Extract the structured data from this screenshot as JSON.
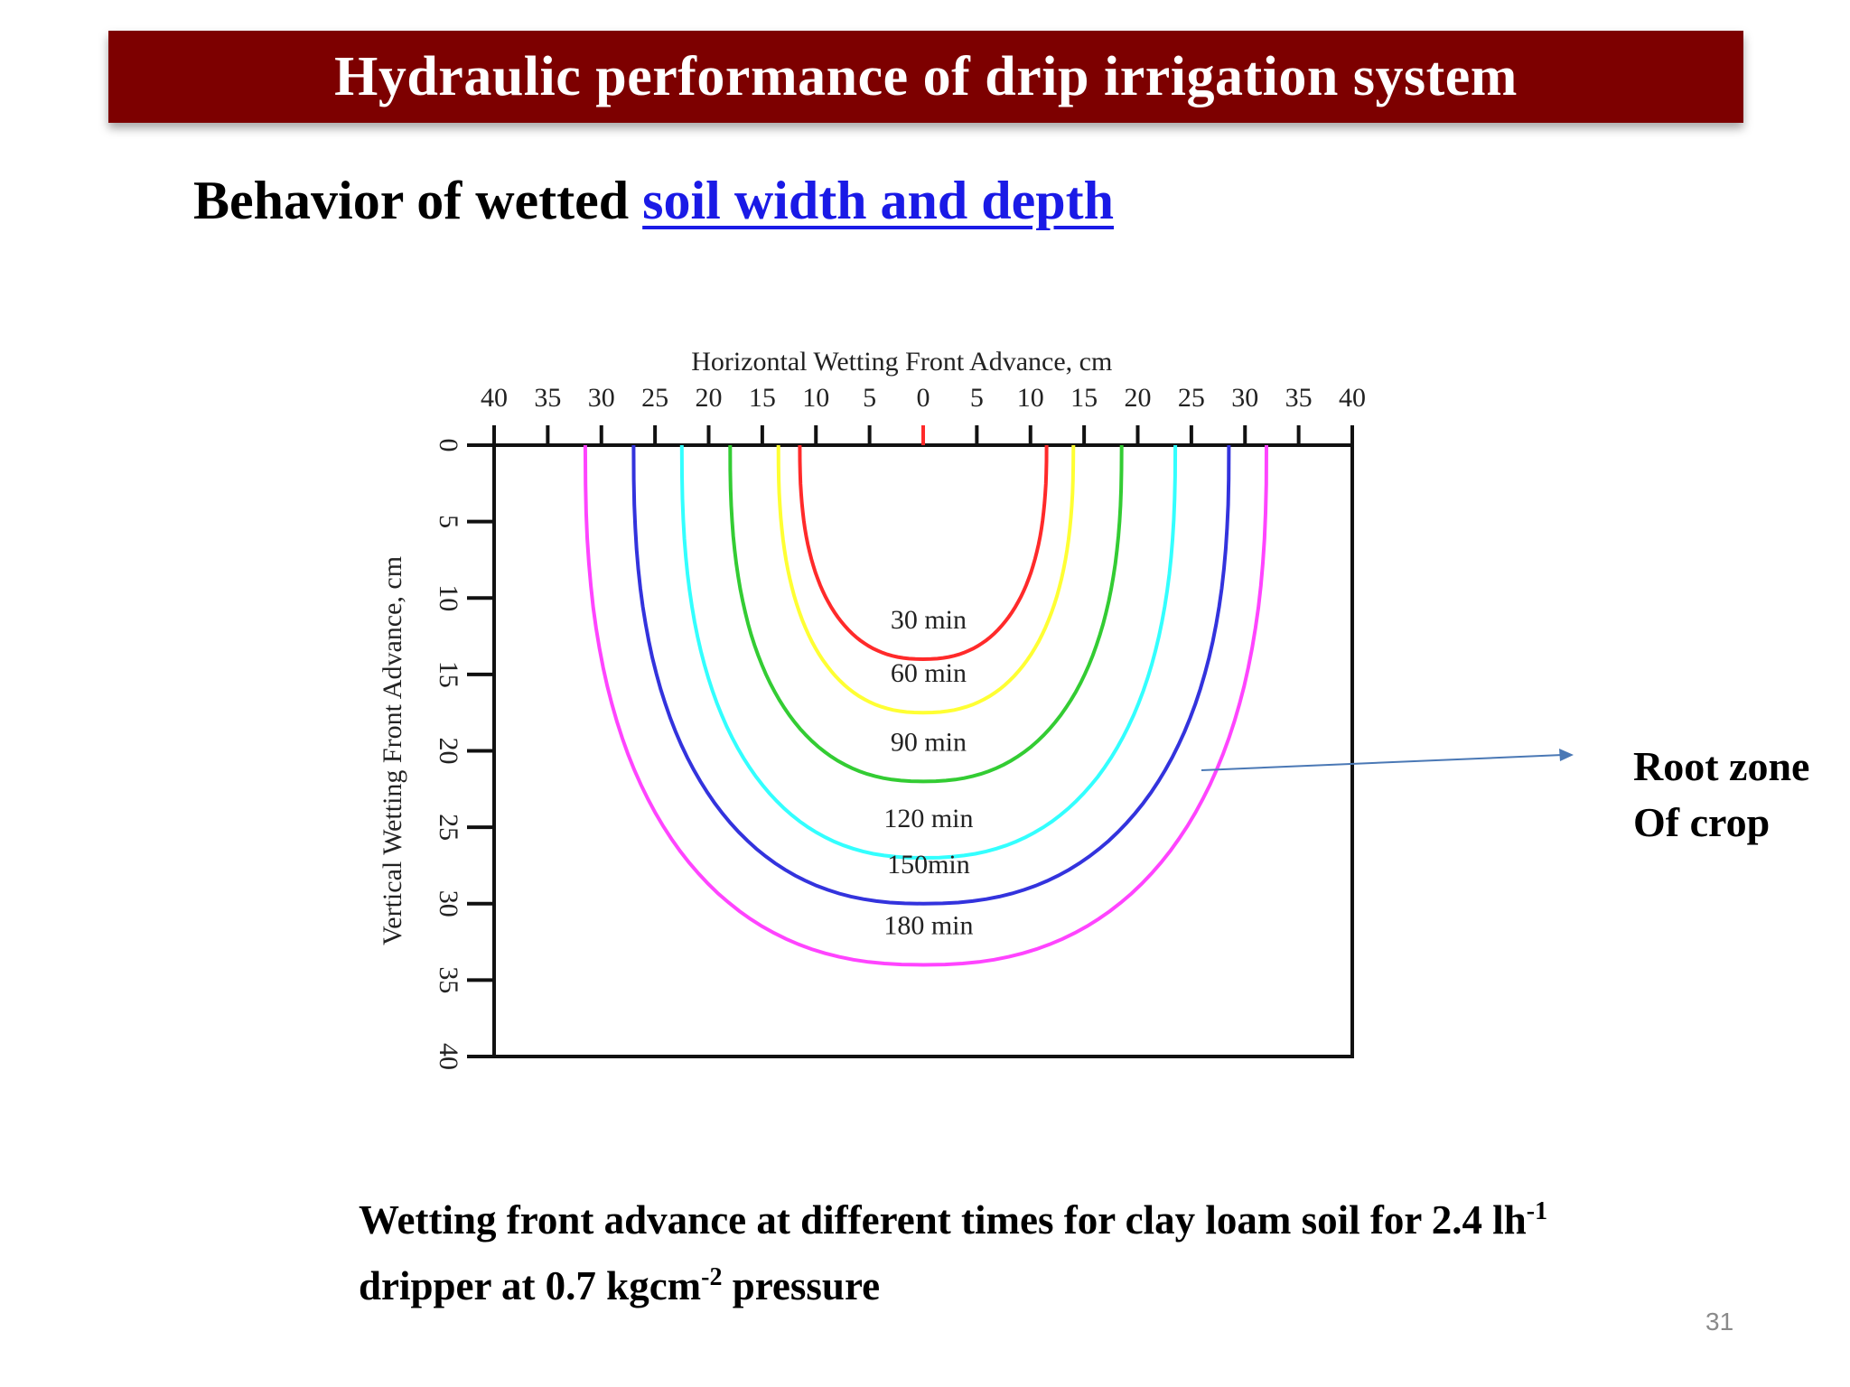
{
  "header": {
    "title": "Hydraulic performance of drip irrigation system"
  },
  "subtitle": {
    "prefix": "Behavior of wetted ",
    "link": "soil width and depth"
  },
  "annotation": {
    "line1": "Root zone",
    "line2": "Of crop"
  },
  "caption": {
    "part1": "Wetting front advance at different times for clay loam soil for 2.4 lh",
    "sup1": "-1",
    "part2": "dripper at 0.7 kgcm",
    "sup2": "-2",
    "part3": " pressure"
  },
  "page_number": "31",
  "colors": {
    "title_bar": "#7d0000",
    "link": "#1a1ae6",
    "arrow": "#4a78b5"
  },
  "chart_data": {
    "type": "line",
    "xlabel": "Horizontal Wetting Front Advance, cm",
    "ylabel": "Vertical Wetting Front Advance, cm",
    "x_ticks": [
      "40",
      "35",
      "30",
      "25",
      "20",
      "15",
      "10",
      "5",
      "0",
      "5",
      "10",
      "15",
      "20",
      "25",
      "30",
      "35",
      "40"
    ],
    "y_ticks": [
      "0",
      "5",
      "10",
      "15",
      "20",
      "25",
      "30",
      "35",
      "40"
    ],
    "xlim": [
      -40,
      40
    ],
    "ylim": [
      0,
      40
    ],
    "y_inverted": true,
    "grid": false,
    "series": [
      {
        "name": "30 min",
        "color": "#ff2a2a",
        "half_width_left": 11.5,
        "half_width_right": 11.5,
        "depth": 14
      },
      {
        "name": "60 min",
        "color": "#ffff33",
        "half_width_left": 13.5,
        "half_width_right": 14,
        "depth": 17.5
      },
      {
        "name": "90 min",
        "color": "#33cc33",
        "half_width_left": 18,
        "half_width_right": 18.5,
        "depth": 22
      },
      {
        "name": "120 min",
        "color": "#33ffff",
        "half_width_left": 22.5,
        "half_width_right": 23.5,
        "depth": 27
      },
      {
        "name": "150min",
        "color": "#3333dd",
        "half_width_left": 27,
        "half_width_right": 28.5,
        "depth": 30
      },
      {
        "name": "180 min",
        "color": "#ff44ff",
        "half_width_left": 31.5,
        "half_width_right": 32,
        "depth": 34
      }
    ]
  }
}
